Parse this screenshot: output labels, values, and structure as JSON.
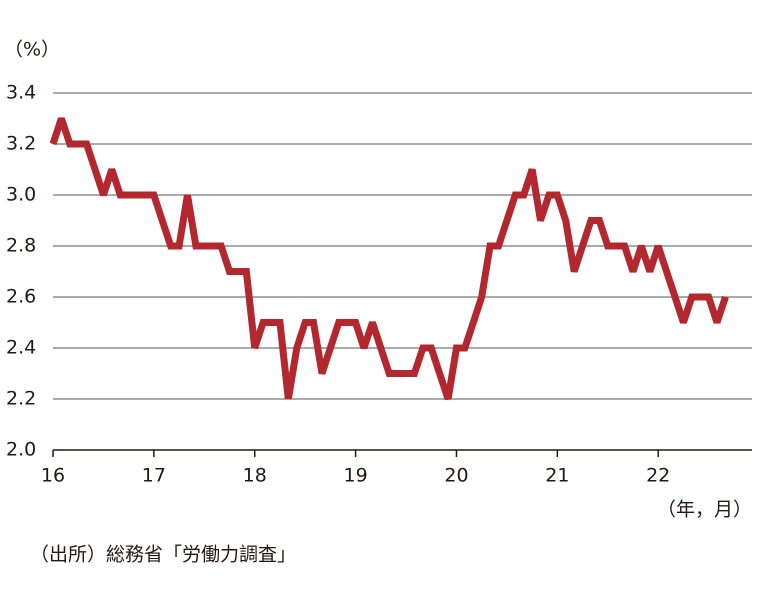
{
  "chart_data": {
    "type": "line",
    "y_unit_label": "（%）",
    "x_unit_label": "（年，月）",
    "source": "（出所）総務省「労働力調査」",
    "x": [
      16,
      16.083,
      16.167,
      16.25,
      16.333,
      16.417,
      16.5,
      16.583,
      16.667,
      16.75,
      16.833,
      16.917,
      17,
      17.083,
      17.167,
      17.25,
      17.333,
      17.417,
      17.5,
      17.583,
      17.667,
      17.75,
      17.833,
      17.917,
      18,
      18.083,
      18.167,
      18.25,
      18.333,
      18.417,
      18.5,
      18.583,
      18.667,
      18.75,
      18.833,
      18.917,
      19,
      19.083,
      19.167,
      19.25,
      19.333,
      19.417,
      19.5,
      19.583,
      19.667,
      19.75,
      19.833,
      19.917,
      20,
      20.083,
      20.167,
      20.25,
      20.333,
      20.417,
      20.5,
      20.583,
      20.667,
      20.75,
      20.833,
      20.917,
      21,
      21.083,
      21.167,
      21.25,
      21.333,
      21.417,
      21.5,
      21.583,
      21.667,
      21.75,
      21.833,
      21.917,
      22,
      22.083,
      22.167,
      22.25,
      22.333,
      22.417,
      22.5,
      22.583,
      22.667
    ],
    "series": [
      {
        "color": "#b3282e",
        "values": [
          3.2,
          3.3,
          3.2,
          3.2,
          3.2,
          3.1,
          3.0,
          3.1,
          3.0,
          3.0,
          3.0,
          3.0,
          3.0,
          2.9,
          2.8,
          2.8,
          3.0,
          2.8,
          2.8,
          2.8,
          2.8,
          2.7,
          2.7,
          2.7,
          2.4,
          2.5,
          2.5,
          2.5,
          2.2,
          2.4,
          2.5,
          2.5,
          2.3,
          2.4,
          2.5,
          2.5,
          2.5,
          2.4,
          2.5,
          2.4,
          2.3,
          2.3,
          2.3,
          2.3,
          2.4,
          2.4,
          2.3,
          2.2,
          2.4,
          2.4,
          2.5,
          2.6,
          2.8,
          2.8,
          2.9,
          3.0,
          3.0,
          3.1,
          2.9,
          3.0,
          3.0,
          2.9,
          2.7,
          2.8,
          2.9,
          2.9,
          2.8,
          2.8,
          2.8,
          2.7,
          2.8,
          2.7,
          2.8,
          2.7,
          2.6,
          2.5,
          2.6,
          2.6,
          2.6,
          2.5,
          2.6
        ]
      }
    ],
    "xlim": [
      16,
      22.93
    ],
    "xticks": [
      16,
      17,
      18,
      19,
      20,
      21,
      22
    ],
    "ylim": [
      2.0,
      3.4
    ],
    "yticks": [
      {
        "value": 2.0,
        "label": "2.0"
      },
      2.2,
      2.4,
      2.6,
      2.8,
      {
        "value": 3.0,
        "label": "3.0"
      },
      3.2,
      3.4
    ],
    "grid": true
  }
}
